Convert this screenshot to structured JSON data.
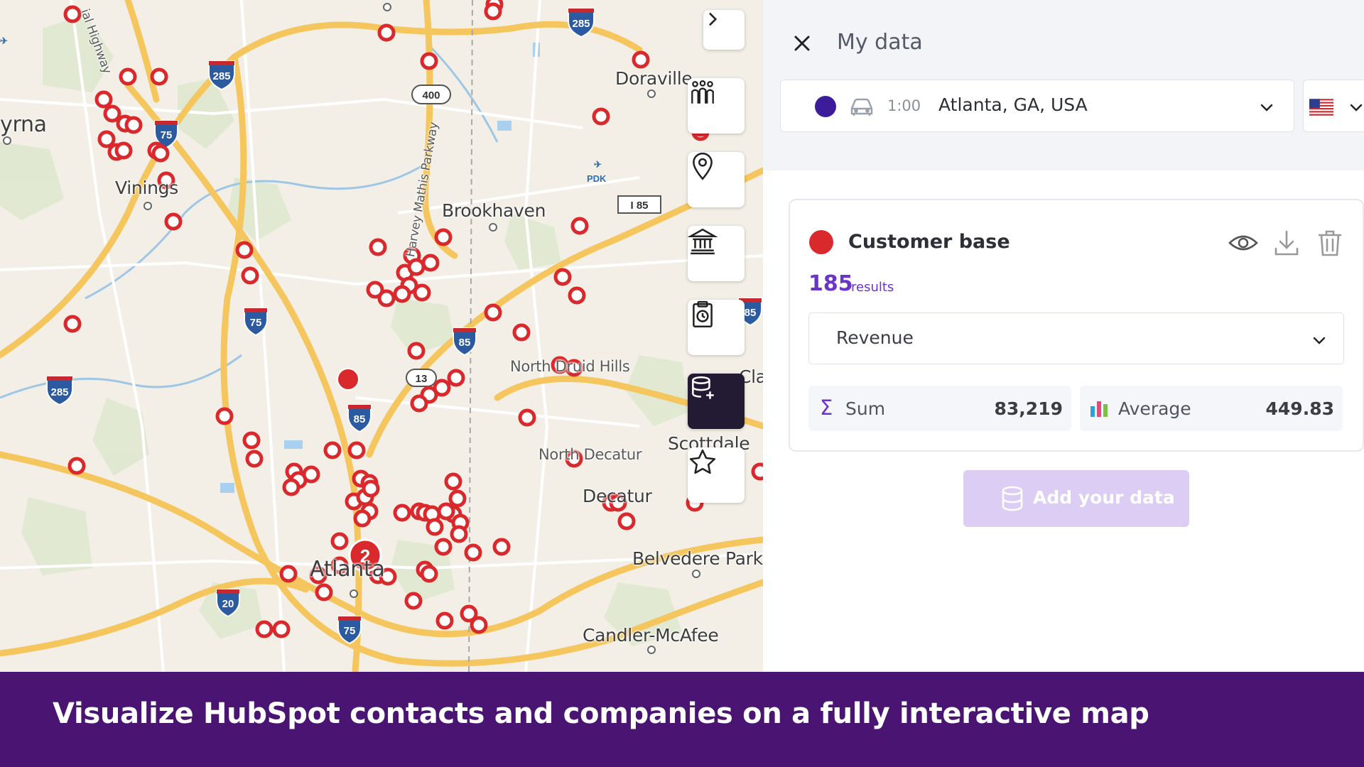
{
  "map": {
    "places": {
      "smyrna": "yrna",
      "vinings": "Vinings",
      "brookhaven": "Brookhaven",
      "doraville": "Doraville",
      "north_druid_hills": "North Druid Hills",
      "north_decatur": "North Decatur",
      "decatur": "Decatur",
      "scottdale": "Scottdale",
      "clarkston": "Clar",
      "belvedere_park": "Belvedere Park",
      "candler_mcafee": "Candler-McAfee",
      "atlanta": "Atlanta",
      "parkway": "Harvey Mathis Parkway",
      "highway": "ial Highway",
      "pdk": "PDK"
    },
    "road_shields": [
      "285",
      "285",
      "75",
      "400",
      "I 85",
      "85",
      "75",
      "85",
      "13",
      "285",
      "85",
      "20",
      "75",
      "75"
    ],
    "cluster_label": "2",
    "marker_color": "#d9292c"
  },
  "toolbar": {
    "items": [
      "chevron-right-icon",
      "population-icon",
      "map-pin-icon",
      "bank-icon",
      "report-clock-icon",
      "database-add-icon",
      "star-icon"
    ],
    "active": "database-add-icon"
  },
  "panel": {
    "title": "My data",
    "location": {
      "dot_color": "#3d1c9c",
      "travel_mode_icon": "car-icon",
      "time": "1:00",
      "value": "Atlanta, GA, USA"
    },
    "country": {
      "flag_icon": "us-flag-icon"
    },
    "layer": {
      "dot_color": "#d9292c",
      "name": "Customer base",
      "count": "185",
      "count_label": "results",
      "metric": "Revenue",
      "sum_label": "Sum",
      "sum_value": "83,219",
      "avg_label": "Average",
      "avg_value": "449.83"
    },
    "add_button_label": "Add your data"
  },
  "banner": {
    "text": "Visualize HubSpot contacts and companies on a fully interactive map"
  }
}
